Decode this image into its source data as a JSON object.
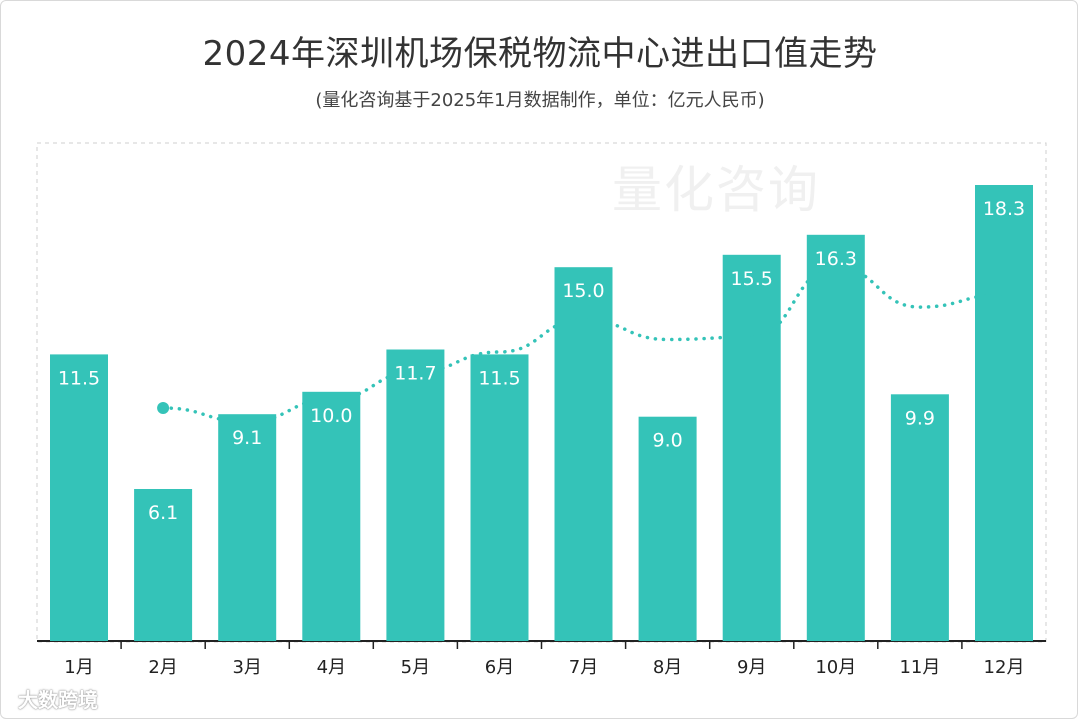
{
  "title": "2024年深圳机场保税物流中心进出口值走势",
  "subtitle": "(量化咨询基于2025年1月数据制作，单位：亿元人民币)",
  "watermark": "量化咨询",
  "footer_logo": "大数跨境",
  "colors": {
    "bar": "#34c3b8",
    "line": "#34c3b8",
    "axis": "#222222",
    "grid_border": "#cfcfcf"
  },
  "chart_data": {
    "type": "bar",
    "title": "2024年深圳机场保税物流中心进出口值走势",
    "subtitle": "(量化咨询基于2025年1月数据制作，单位：亿元人民币)",
    "categories": [
      "1月",
      "2月",
      "3月",
      "4月",
      "5月",
      "6月",
      "7月",
      "8月",
      "9月",
      "10月",
      "11月",
      "12月"
    ],
    "values": [
      11.5,
      6.1,
      9.1,
      10.0,
      11.7,
      11.5,
      15.0,
      9.0,
      15.5,
      16.3,
      9.9,
      18.3
    ],
    "data_labels": [
      "11.5",
      "6.1",
      "9.1",
      "10.0",
      "11.7",
      "11.5",
      "15.0",
      "9.0",
      "15.5",
      "16.3",
      "9.9",
      "18.3"
    ],
    "trend_line": {
      "style": "dotted",
      "start_category": "2月",
      "values": [
        null,
        9.35,
        8.8,
        9.7,
        10.8,
        11.6,
        12.9,
        12.1,
        12.2,
        15.0,
        13.4,
        13.9
      ]
    },
    "ylim": [
      0,
      20
    ],
    "grid": false,
    "legend": "none"
  }
}
